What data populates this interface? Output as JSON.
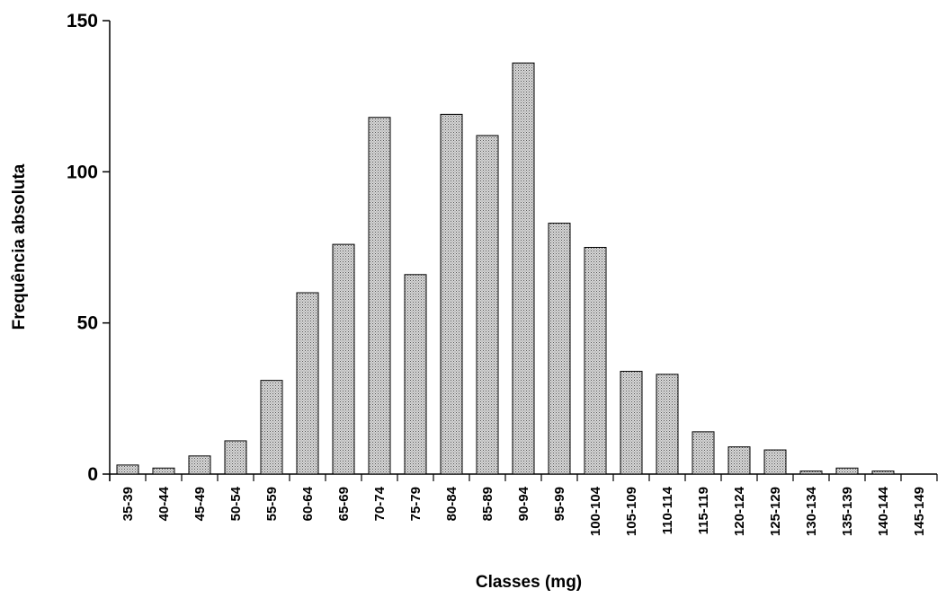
{
  "chart_data": {
    "type": "bar",
    "title": "",
    "xlabel": "Classes (mg)",
    "ylabel": "Frequência absoluta",
    "ylim": [
      0,
      150
    ],
    "yticks": [
      0,
      50,
      100,
      150
    ],
    "grid": false,
    "categories": [
      "35-39",
      "40-44",
      "45-49",
      "50-54",
      "55-59",
      "60-64",
      "65-69",
      "70-74",
      "75-79",
      "80-84",
      "85-89",
      "90-94",
      "95-99",
      "100-104",
      "105-109",
      "110-114",
      "115-119",
      "120-124",
      "125-129",
      "130-134",
      "135-139",
      "140-144",
      "145-149"
    ],
    "values": [
      3,
      2,
      6,
      11,
      31,
      60,
      76,
      118,
      66,
      119,
      112,
      136,
      83,
      75,
      34,
      33,
      14,
      9,
      8,
      1,
      2,
      1,
      0
    ],
    "bar_fill": "#cfcfcf",
    "bar_stroke": "#000000"
  }
}
